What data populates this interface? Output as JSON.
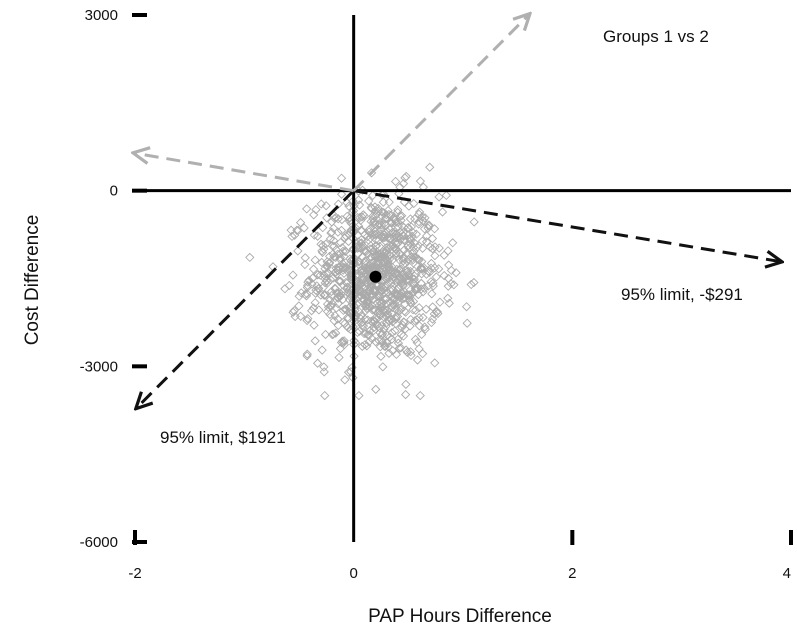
{
  "chart_data": {
    "type": "scatter",
    "title": "Groups 1 vs 2",
    "xlabel": "PAP Hours Difference",
    "ylabel": "Cost Difference",
    "xlim": [
      -2,
      4
    ],
    "ylim": [
      -6000,
      3000
    ],
    "x_ticks": [
      -2,
      0,
      2,
      4
    ],
    "y_ticks": [
      3000,
      0,
      -3000,
      -6000
    ],
    "x_tick_labels": [
      "-2",
      "0",
      "2",
      "4"
    ],
    "y_tick_labels": [
      "3000",
      "0",
      "-3000",
      "-6000"
    ],
    "grid": false,
    "point_estimate": {
      "x": 0.2,
      "y": -1470
    },
    "reference_arrows": [
      {
        "label": "95% limit, -$291",
        "style": "dashed",
        "color": "#111111",
        "from": [
          0,
          0
        ],
        "to": [
          3.9,
          -1210
        ]
      },
      {
        "label": "95% limit, $1921",
        "style": "dashed",
        "color": "#111111",
        "from": [
          0,
          0
        ],
        "to": [
          -1.98,
          -3700
        ]
      },
      {
        "label": "",
        "style": "dashed",
        "color": "#b0b0b0",
        "from": [
          0,
          0
        ],
        "to": [
          1.6,
          3000
        ]
      },
      {
        "label": "",
        "style": "dashed",
        "color": "#b0b0b0",
        "from": [
          0,
          0
        ],
        "to": [
          -2,
          640
        ]
      }
    ],
    "bootstrap_cloud": {
      "count": 1000,
      "center": [
        0.2,
        -1470
      ],
      "sd": [
        0.3,
        700
      ],
      "marker": "open-diamond",
      "color": "#aaaaaa"
    }
  },
  "annotations": {
    "title": "Groups 1 vs 2",
    "limit_upper": "95% limit, -$291",
    "limit_lower": "95% limit, $1921"
  }
}
